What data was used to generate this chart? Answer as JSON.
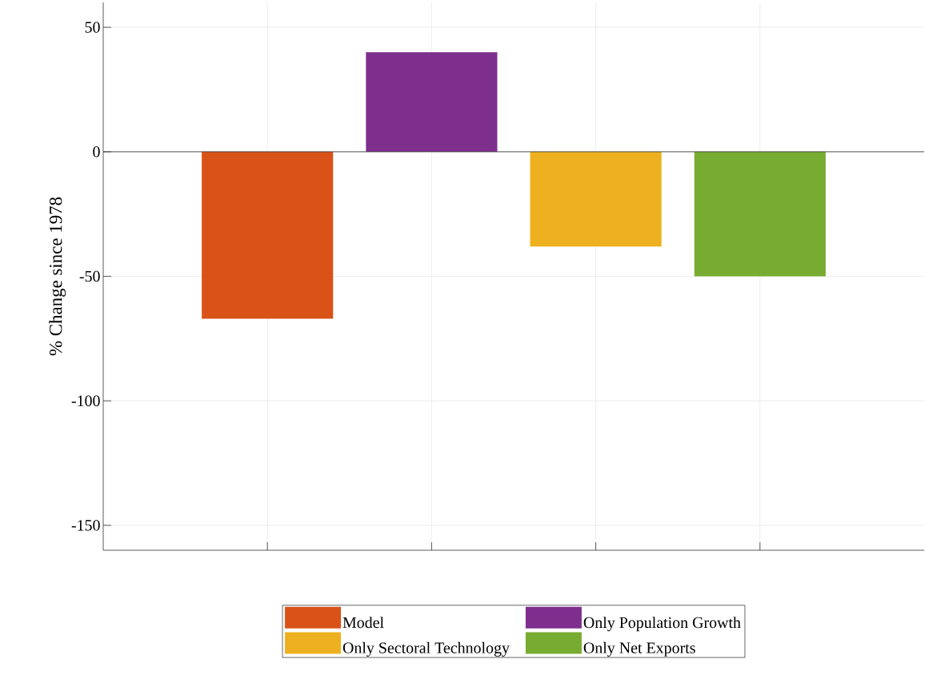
{
  "chart_data": {
    "type": "bar",
    "ylabel": "% Change since 1978",
    "categories": [
      null,
      null,
      null,
      null
    ],
    "series": [
      {
        "name": "Model",
        "color": "#d95319",
        "values": [
          -67,
          null,
          null,
          null
        ]
      },
      {
        "name": "Only Population Growth",
        "color": "#7e2f8e",
        "values": [
          null,
          40,
          null,
          null
        ]
      },
      {
        "name": "Only Sectoral Technology",
        "color": "#edb120",
        "values": [
          null,
          null,
          -38,
          null
        ]
      },
      {
        "name": "Only Net Exports",
        "color": "#77ac30",
        "values": [
          null,
          null,
          null,
          -50
        ]
      }
    ],
    "ylim": [
      -160,
      60
    ],
    "yticks": [
      -150,
      -100,
      -50,
      0,
      50
    ],
    "ref_lines": [
      {
        "axis": "y",
        "value": 0
      }
    ],
    "grid": true,
    "legend": "bottom",
    "tick_labels": "y"
  }
}
